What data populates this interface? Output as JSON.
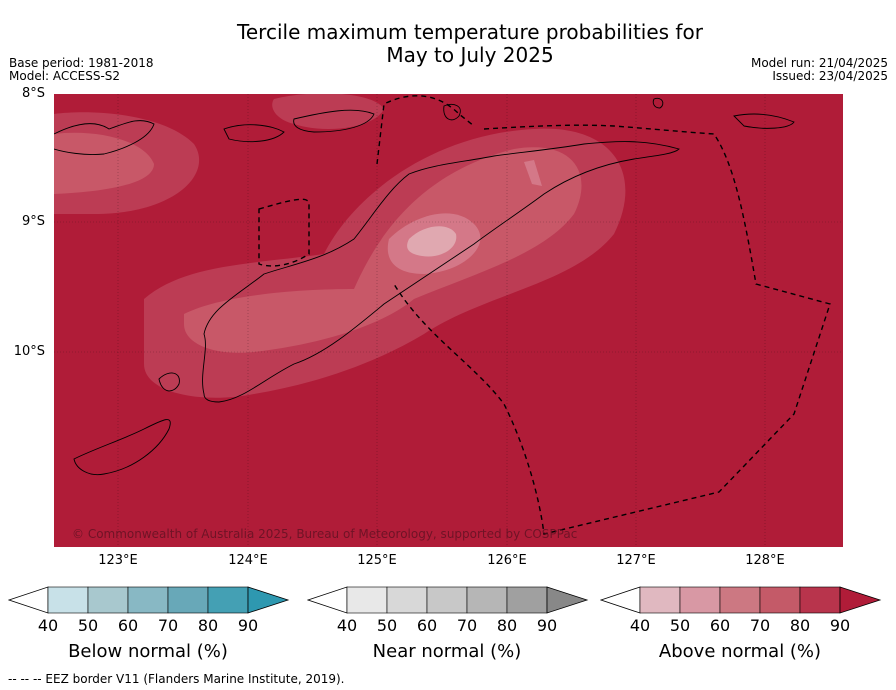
{
  "title": {
    "line1": "Tercile maximum temperature probabilities for",
    "line2": "May to July 2025"
  },
  "meta_left": {
    "base_period": "Base period: 1981-2018",
    "model": "Model: ACCESS-S2"
  },
  "meta_right": {
    "model_run": "Model run: 21/04/2025",
    "issued": "Issued: 23/04/2025"
  },
  "map": {
    "lat_labels": [
      "8°S",
      "9°S",
      "10°S"
    ],
    "lon_labels": [
      "123°E",
      "124°E",
      "125°E",
      "126°E",
      "127°E",
      "128°E"
    ],
    "copyright": "© Commonwealth of Australia 2025, Bureau of Meteorology, supported by COSPPac",
    "background_color": "#b01c38"
  },
  "colorbars": [
    {
      "title": "Below normal (%)",
      "ticks": [
        "40",
        "50",
        "60",
        "70",
        "80",
        "90"
      ],
      "colors": [
        "#ffffff",
        "#c8e1e8",
        "#a8c8ce",
        "#88b8c4",
        "#68a8b8",
        "#44a0b4",
        "#2e98b0"
      ]
    },
    {
      "title": "Near normal (%)",
      "ticks": [
        "40",
        "50",
        "60",
        "70",
        "80",
        "90"
      ],
      "colors": [
        "#ffffff",
        "#e8e8e8",
        "#d8d8d8",
        "#c8c8c8",
        "#b6b6b6",
        "#a0a0a0",
        "#888888"
      ]
    },
    {
      "title": "Above normal (%)",
      "ticks": [
        "40",
        "50",
        "60",
        "70",
        "80",
        "90"
      ],
      "colors": [
        "#ffffff",
        "#e0b8c0",
        "#d898a4",
        "#cc7882",
        "#c45a68",
        "#b8344c",
        "#b01c38"
      ]
    }
  ],
  "footer": "--  --  -- EEZ border V11 (Flanders Marine Institute, 2019)."
}
